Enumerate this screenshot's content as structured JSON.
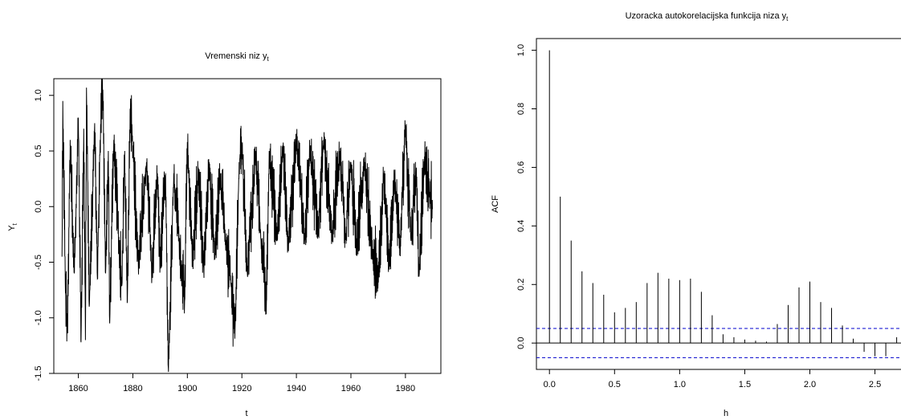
{
  "chart_data": [
    {
      "type": "line",
      "title_main": "Vremenski niz",
      "title_var": "y",
      "title_sub": "t",
      "xlabel": "t",
      "ylabel_main": "Y",
      "ylabel_sub": "t",
      "xlim": [
        1851,
        1993
      ],
      "ylim": [
        -1.5,
        1.15
      ],
      "xticks": [
        1860,
        1880,
        1900,
        1920,
        1940,
        1960,
        1980
      ],
      "xtick_labels": [
        "1860",
        "1880",
        "1900",
        "1920",
        "1940",
        "1960",
        "1980"
      ],
      "yticks": [
        -1.5,
        -1.0,
        -0.5,
        0.0,
        0.5,
        1.0
      ],
      "ytick_labels": [
        "-1.5",
        "-1.0",
        "-0.5",
        "0.0",
        "0.5",
        "1.0"
      ],
      "series": [
        {
          "x_start": 1854.0,
          "x_step": 0.0833333,
          "keypoints": [
            [
              1854.0,
              -0.45
            ],
            [
              1854.3,
              0.95
            ],
            [
              1855.2,
              -0.7
            ],
            [
              1856.0,
              -1.13
            ],
            [
              1857.0,
              0.6
            ],
            [
              1858.5,
              -0.6
            ],
            [
              1860.0,
              0.8
            ],
            [
              1861.0,
              -1.22
            ],
            [
              1862.0,
              0.7
            ],
            [
              1862.6,
              -1.2
            ],
            [
              1863.0,
              1.07
            ],
            [
              1864.0,
              -0.9
            ],
            [
              1866.0,
              0.75
            ],
            [
              1867.0,
              -0.65
            ],
            [
              1868.0,
              0.6
            ],
            [
              1869.0,
              1.05
            ],
            [
              1870.0,
              -0.6
            ],
            [
              1871.0,
              0.5
            ],
            [
              1871.5,
              -1.05
            ],
            [
              1873.0,
              0.6
            ],
            [
              1875.0,
              -0.4
            ],
            [
              1876.0,
              -0.7
            ],
            [
              1877.0,
              0.5
            ],
            [
              1878.0,
              -0.85
            ],
            [
              1879.0,
              0.88
            ],
            [
              1880.0,
              0.55
            ],
            [
              1882.0,
              -0.5
            ],
            [
              1885.0,
              0.4
            ],
            [
              1887.0,
              -0.6
            ],
            [
              1889.0,
              0.3
            ],
            [
              1890.0,
              -0.5
            ],
            [
              1892.0,
              0.3
            ],
            [
              1893.0,
              -1.45
            ],
            [
              1895.0,
              0.3
            ],
            [
              1897.0,
              -0.3
            ],
            [
              1898.0,
              -0.6
            ],
            [
              1899.0,
              -0.85
            ],
            [
              1900.0,
              0.58
            ],
            [
              1902.0,
              -0.5
            ],
            [
              1904.0,
              0.35
            ],
            [
              1906.0,
              -0.55
            ],
            [
              1908.0,
              0.4
            ],
            [
              1910.0,
              -0.4
            ],
            [
              1912.0,
              0.3
            ],
            [
              1914.0,
              -0.3
            ],
            [
              1916.0,
              -0.7
            ],
            [
              1917.5,
              -1.1
            ],
            [
              1919.0,
              0.4
            ],
            [
              1920.0,
              0.55
            ],
            [
              1922.0,
              -0.6
            ],
            [
              1925.0,
              0.5
            ],
            [
              1927.0,
              -0.3
            ],
            [
              1929.0,
              -0.85
            ],
            [
              1930.0,
              0.5
            ],
            [
              1933.0,
              -0.3
            ],
            [
              1935.0,
              0.55
            ],
            [
              1937.0,
              -0.35
            ],
            [
              1940.0,
              0.62
            ],
            [
              1943.0,
              -0.3
            ],
            [
              1945.0,
              0.55
            ],
            [
              1948.0,
              -0.2
            ],
            [
              1950.0,
              0.6
            ],
            [
              1953.0,
              -0.25
            ],
            [
              1956.0,
              0.5
            ],
            [
              1958.0,
              -0.3
            ],
            [
              1960.0,
              0.4
            ],
            [
              1962.0,
              -0.35
            ],
            [
              1965.0,
              0.4
            ],
            [
              1968.0,
              -0.4
            ],
            [
              1970.0,
              -0.65
            ],
            [
              1972.0,
              0.3
            ],
            [
              1974.0,
              -0.5
            ],
            [
              1976.0,
              0.25
            ],
            [
              1978.0,
              -0.35
            ],
            [
              1980.0,
              0.73
            ],
            [
              1982.0,
              -0.3
            ],
            [
              1984.0,
              0.35
            ],
            [
              1985.0,
              -0.63
            ],
            [
              1987.0,
              0.45
            ],
            [
              1989.0,
              0.1
            ],
            [
              1990.0,
              -0.02
            ]
          ]
        }
      ]
    },
    {
      "type": "bar",
      "title_main": "Uzoracka autokorelacijska funkcija niza",
      "title_var": "y",
      "title_sub": "t",
      "xlabel": "h",
      "ylabel": "ACF",
      "xlim": [
        -0.1,
        2.7
      ],
      "ylim": [
        -0.09,
        1.04
      ],
      "xticks": [
        0.0,
        0.5,
        1.0,
        1.5,
        2.0,
        2.5
      ],
      "xtick_labels": [
        "0.0",
        "0.5",
        "1.0",
        "1.5",
        "2.0",
        "2.5"
      ],
      "yticks": [
        0.0,
        0.2,
        0.4,
        0.6,
        0.8,
        1.0
      ],
      "ytick_labels": [
        "0.0",
        "0.2",
        "0.4",
        "0.6",
        "0.8",
        "1.0"
      ],
      "lags": [
        0.0,
        0.0833,
        0.1667,
        0.25,
        0.3333,
        0.4167,
        0.5,
        0.5833,
        0.6667,
        0.75,
        0.8333,
        0.9167,
        1.0,
        1.0833,
        1.1667,
        1.25,
        1.3333,
        1.4167,
        1.5,
        1.5833,
        1.6667,
        1.75,
        1.8333,
        1.9167,
        2.0,
        2.0833,
        2.1667,
        2.25,
        2.3333,
        2.4167,
        2.5,
        2.5833,
        2.6667
      ],
      "values": [
        1.0,
        0.5,
        0.35,
        0.245,
        0.205,
        0.165,
        0.105,
        0.12,
        0.14,
        0.205,
        0.24,
        0.22,
        0.215,
        0.22,
        0.175,
        0.095,
        0.03,
        0.02,
        0.012,
        0.008,
        0.005,
        0.065,
        0.13,
        0.19,
        0.21,
        0.14,
        0.12,
        0.06,
        0.015,
        -0.03,
        -0.045,
        -0.045,
        0.02
      ],
      "ci": 0.05,
      "ci_color": "#0000cc"
    }
  ]
}
